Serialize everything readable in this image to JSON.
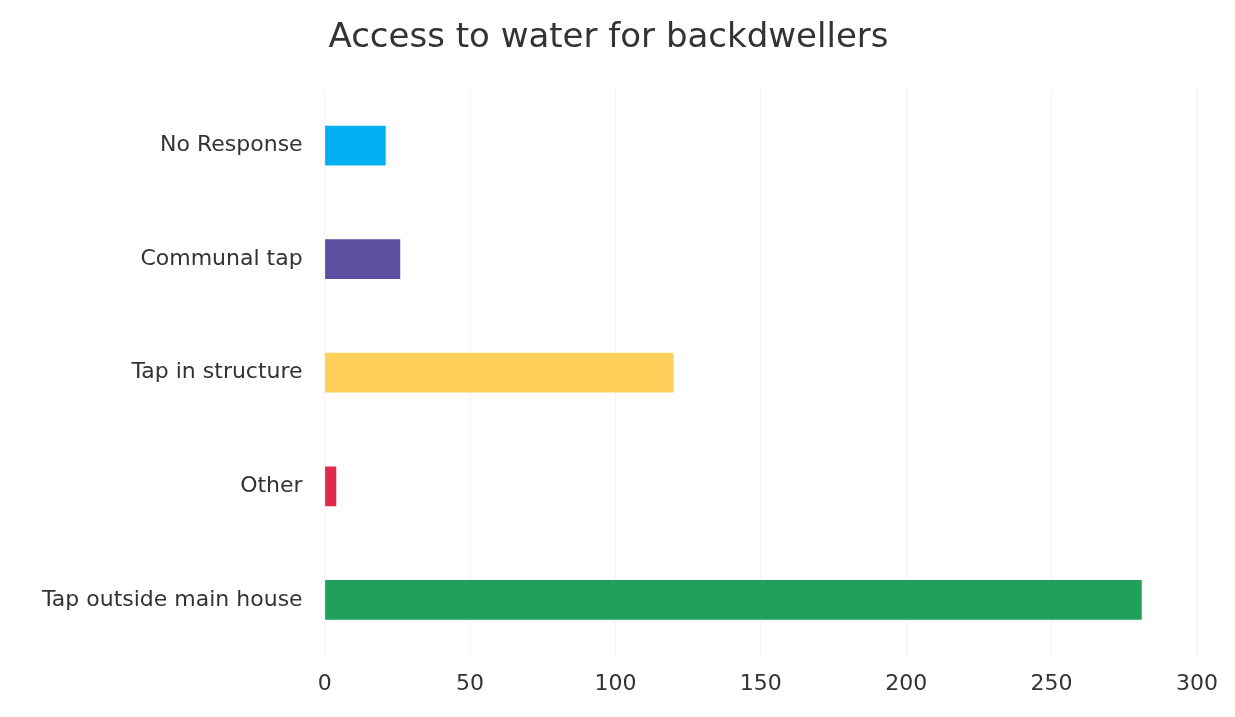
{
  "chart_data": {
    "type": "bar",
    "orientation": "horizontal",
    "title": "Access to water for backdwellers",
    "categories": [
      "No Response",
      "Communal tap",
      "Tap in structure",
      "Other",
      "Tap outside main house"
    ],
    "values": [
      21,
      26,
      120,
      4,
      281
    ],
    "colors": [
      "#00b0f0",
      "#5b4fa0",
      "#ffd05a",
      "#e0284a",
      "#1fa05c"
    ],
    "xlim": [
      0,
      300
    ],
    "xticks": [
      0,
      50,
      100,
      150,
      200,
      250,
      300
    ],
    "grid": "x",
    "legend": false
  }
}
